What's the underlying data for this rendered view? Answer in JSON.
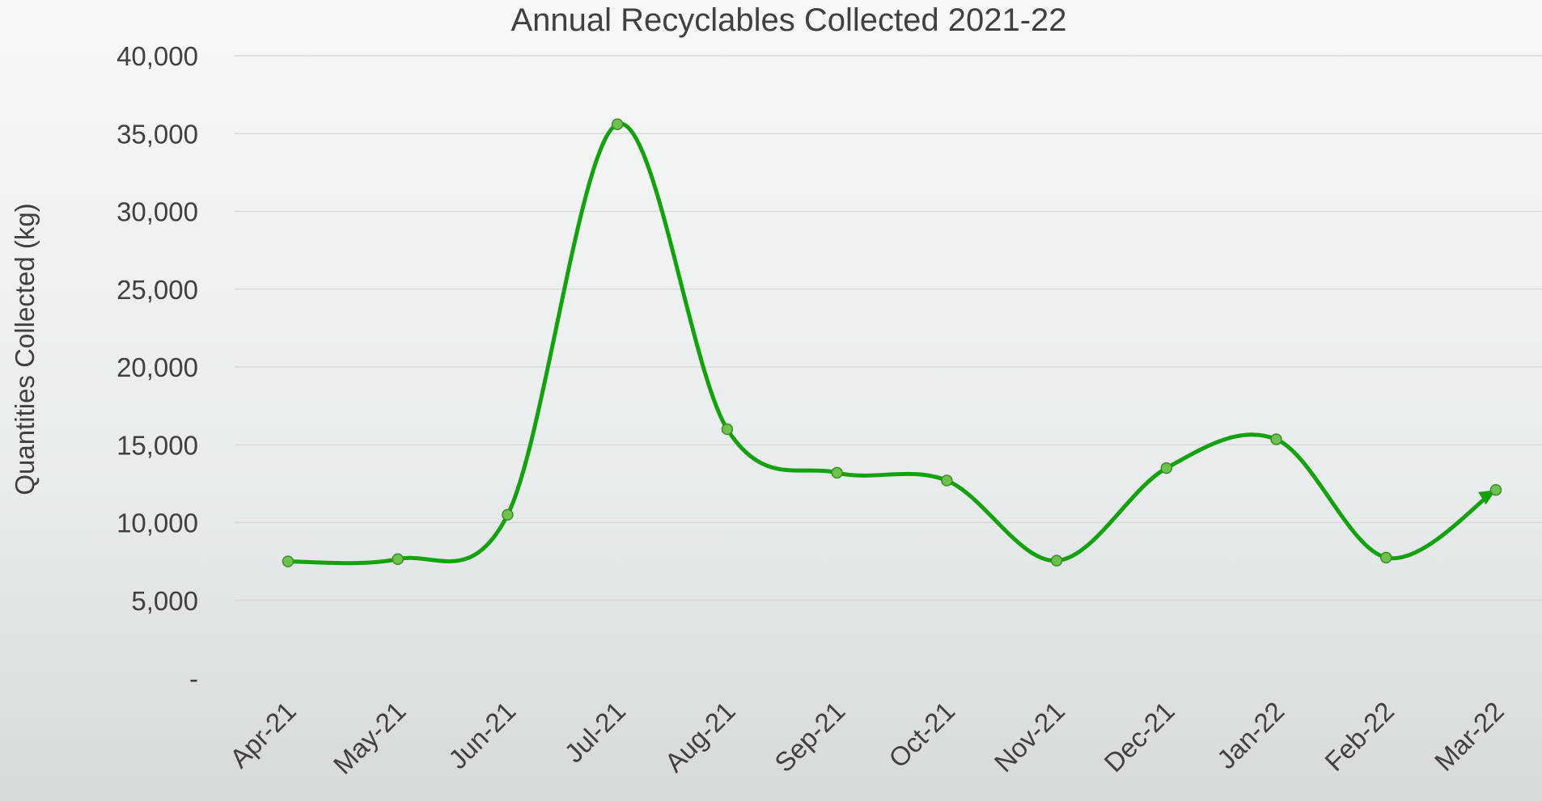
{
  "chart_data": {
    "type": "line",
    "title": "Annual Recyclables Collected 2021-22",
    "xlabel": "",
    "ylabel": "Quantities Collected (kg)",
    "categories": [
      "Apr-21",
      "May-21",
      "Jun-21",
      "Jul-21",
      "Aug-21",
      "Sep-21",
      "Oct-21",
      "Nov-21",
      "Dec-21",
      "Jan-22",
      "Feb-22",
      "Mar-22"
    ],
    "series": [
      {
        "values": [
          7500,
          7650,
          10500,
          35600,
          16000,
          13200,
          12700,
          7550,
          13500,
          15350,
          7750,
          12100
        ],
        "color": "#13a10e"
      }
    ],
    "ylim": [
      0,
      40000
    ],
    "yticks": [
      0,
      5000,
      10000,
      15000,
      20000,
      25000,
      30000,
      35000,
      40000
    ],
    "ytick_labels": [
      "-",
      "5,000",
      "10,000",
      "15,000",
      "20,000",
      "25,000",
      "30,000",
      "35,000",
      "40,000"
    ],
    "grid": true,
    "legend": "none",
    "marker_color": "#6cc24a",
    "smooth": true
  }
}
